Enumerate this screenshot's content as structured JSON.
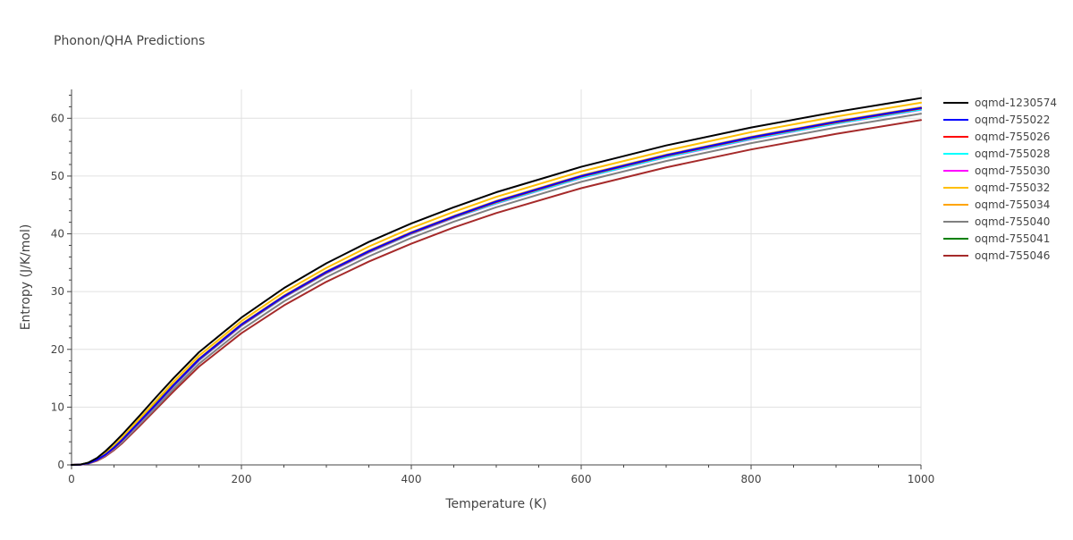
{
  "chart_data": {
    "type": "line",
    "title": "Phonon/QHA Predictions",
    "xlabel": "Temperature (K)",
    "ylabel": "Entropy (J/K/mol)",
    "xlim": [
      0,
      1000
    ],
    "ylim": [
      0,
      65
    ],
    "xticks": [
      0,
      200,
      400,
      600,
      800,
      1000
    ],
    "yticks": [
      0,
      10,
      20,
      30,
      40,
      50,
      60
    ],
    "grid": true,
    "legend_position": "right",
    "x": [
      0,
      10,
      20,
      30,
      40,
      50,
      60,
      80,
      100,
      120,
      150,
      200,
      250,
      300,
      350,
      400,
      450,
      500,
      600,
      700,
      800,
      900,
      1000
    ],
    "series": [
      {
        "name": "oqmd-1230574",
        "color": "#000000",
        "values": [
          0,
          0.05,
          0.4,
          1.2,
          2.4,
          3.8,
          5.3,
          8.5,
          11.8,
          15.0,
          19.5,
          25.5,
          30.6,
          34.9,
          38.6,
          41.8,
          44.6,
          47.2,
          51.6,
          55.3,
          58.4,
          61.1,
          63.5
        ]
      },
      {
        "name": "oqmd-755022",
        "color": "#0000ff",
        "values": [
          0,
          0.03,
          0.3,
          0.9,
          1.8,
          3.0,
          4.4,
          7.5,
          10.6,
          13.8,
          18.3,
          24.3,
          29.2,
          33.4,
          37.0,
          40.2,
          43.0,
          45.6,
          50.0,
          53.6,
          56.7,
          59.4,
          61.8
        ]
      },
      {
        "name": "oqmd-755026",
        "color": "#ff0000",
        "values": [
          0,
          0.03,
          0.3,
          0.85,
          1.75,
          2.9,
          4.3,
          7.4,
          10.5,
          13.7,
          18.2,
          24.2,
          29.1,
          33.3,
          36.9,
          40.1,
          42.9,
          45.5,
          49.9,
          53.5,
          56.6,
          59.3,
          61.7
        ]
      },
      {
        "name": "oqmd-755028",
        "color": "#00ffff",
        "values": [
          0,
          0.03,
          0.28,
          0.83,
          1.72,
          2.85,
          4.2,
          7.3,
          10.4,
          13.6,
          18.1,
          24.1,
          29.0,
          33.2,
          36.8,
          40.0,
          42.8,
          45.3,
          49.7,
          53.3,
          56.4,
          59.1,
          61.5
        ]
      },
      {
        "name": "oqmd-755030",
        "color": "#ff00ff",
        "values": [
          0,
          0.03,
          0.28,
          0.82,
          1.7,
          2.82,
          4.18,
          7.25,
          10.35,
          13.55,
          18.05,
          24.05,
          28.95,
          33.15,
          36.75,
          39.95,
          42.75,
          45.25,
          49.65,
          53.25,
          56.35,
          59.05,
          61.45
        ]
      },
      {
        "name": "oqmd-755032",
        "color": "#ffbf00",
        "values": [
          0,
          0.04,
          0.35,
          1.0,
          2.0,
          3.3,
          4.8,
          8.0,
          11.2,
          14.4,
          18.9,
          24.9,
          29.9,
          34.1,
          37.8,
          41.0,
          43.8,
          46.4,
          50.8,
          54.4,
          57.6,
          60.3,
          62.7
        ]
      },
      {
        "name": "oqmd-755034",
        "color": "#ffa500",
        "values": [
          0,
          0.03,
          0.3,
          0.9,
          1.85,
          3.05,
          4.45,
          7.6,
          10.7,
          13.9,
          18.4,
          24.4,
          29.3,
          33.5,
          37.1,
          40.3,
          43.1,
          45.7,
          50.1,
          53.7,
          56.8,
          59.5,
          61.9
        ]
      },
      {
        "name": "oqmd-755040",
        "color": "#808080",
        "values": [
          0,
          0.03,
          0.26,
          0.78,
          1.62,
          2.7,
          4.0,
          7.0,
          10.0,
          13.1,
          17.5,
          23.4,
          28.3,
          32.5,
          36.1,
          39.3,
          42.1,
          44.6,
          49.0,
          52.6,
          55.7,
          58.4,
          60.8
        ]
      },
      {
        "name": "oqmd-755041",
        "color": "#008000",
        "values": [
          0,
          0.04,
          0.4,
          1.1,
          2.1,
          3.3,
          4.7,
          7.7,
          10.8,
          13.9,
          18.3,
          24.2,
          29.1,
          33.3,
          36.9,
          40.1,
          42.9,
          45.5,
          49.9,
          53.5,
          56.6,
          59.3,
          61.7
        ]
      },
      {
        "name": "oqmd-755046",
        "color": "#a52a2a",
        "values": [
          0,
          0.02,
          0.22,
          0.7,
          1.5,
          2.55,
          3.8,
          6.7,
          9.7,
          12.7,
          17.0,
          22.8,
          27.6,
          31.7,
          35.2,
          38.3,
          41.1,
          43.6,
          47.9,
          51.5,
          54.6,
          57.3,
          59.7
        ]
      }
    ]
  }
}
